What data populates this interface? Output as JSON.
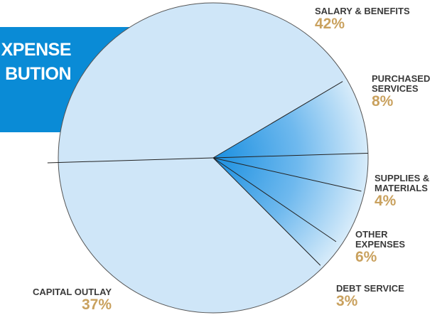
{
  "chart_data": {
    "type": "pie",
    "title": [
      "XPENSE",
      "BUTION"
    ],
    "categories": [
      "SALARY & BENEFITS",
      "PURCHASED SERVICES",
      "SUPPLIES & MATERIALS",
      "OTHER EXPENSES",
      "DEBT SERVICE",
      "CAPITAL OUTLAY"
    ],
    "values": [
      42,
      8,
      4,
      6,
      3,
      37
    ],
    "value_labels": [
      "42%",
      "8%",
      "4%",
      "6%",
      "3%",
      "37%"
    ],
    "colors": [
      "#cfe6f8",
      "gradient",
      "gradient",
      "gradient",
      "gradient",
      "#cfe6f8"
    ]
  }
}
